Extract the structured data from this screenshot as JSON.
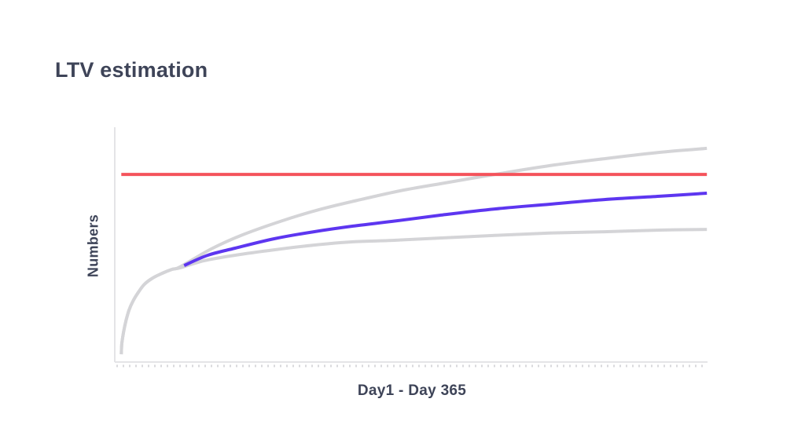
{
  "page": {
    "background_color": "#ffffff",
    "text_color": "#3e4458"
  },
  "chart_data": {
    "type": "line",
    "title": "LTV estimation",
    "xlabel": "Day1 - Day 365",
    "ylabel": "Numbers",
    "x_range": [
      0,
      100
    ],
    "y_range": [
      0,
      100
    ],
    "units_note": "axes have no numeric tick labels; point coordinates are percent of axis length (x: Day1..Day365, y: relative Numbers)",
    "grid": false,
    "legend": false,
    "axis_color": "#e4e4e7",
    "tick_color": "#d9d9dc",
    "line_width": 4,
    "series": [
      {
        "name": "upper-bound",
        "color": "#d4d4d7",
        "points": [
          [
            1.1,
            3.3
          ],
          [
            1.2,
            8.0
          ],
          [
            1.5,
            13.0
          ],
          [
            1.9,
            17.7
          ],
          [
            2.4,
            22.1
          ],
          [
            3.1,
            26.1
          ],
          [
            4.0,
            29.8
          ],
          [
            5.0,
            33.1
          ],
          [
            6.4,
            35.8
          ],
          [
            8.0,
            37.8
          ],
          [
            9.7,
            39.5
          ],
          [
            11.0,
            40.5
          ],
          [
            16.3,
            48.2
          ],
          [
            21.6,
            54.2
          ],
          [
            28.3,
            60.2
          ],
          [
            34.9,
            65.2
          ],
          [
            41.5,
            69.2
          ],
          [
            48.1,
            72.9
          ],
          [
            54.8,
            75.9
          ],
          [
            64.1,
            79.9
          ],
          [
            73.3,
            83.6
          ],
          [
            82.6,
            86.6
          ],
          [
            91.9,
            89.3
          ],
          [
            99.9,
            91.0
          ]
        ]
      },
      {
        "name": "lower-bound",
        "color": "#d4d4d7",
        "points": [
          [
            1.1,
            3.3
          ],
          [
            1.2,
            8.0
          ],
          [
            1.5,
            13.0
          ],
          [
            1.9,
            17.7
          ],
          [
            2.4,
            22.1
          ],
          [
            3.1,
            26.1
          ],
          [
            4.0,
            29.8
          ],
          [
            5.0,
            33.1
          ],
          [
            6.4,
            35.8
          ],
          [
            8.0,
            37.8
          ],
          [
            9.7,
            39.5
          ],
          [
            11.0,
            40.1
          ],
          [
            15.0,
            43.1
          ],
          [
            20.3,
            45.5
          ],
          [
            26.9,
            47.8
          ],
          [
            33.6,
            49.8
          ],
          [
            40.2,
            51.2
          ],
          [
            46.8,
            51.8
          ],
          [
            54.8,
            52.8
          ],
          [
            64.1,
            53.9
          ],
          [
            73.3,
            54.9
          ],
          [
            82.6,
            55.5
          ],
          [
            91.9,
            56.2
          ],
          [
            99.9,
            56.5
          ]
        ]
      },
      {
        "name": "ltv-ceiling",
        "color": "#f4535b",
        "points": [
          [
            1.1,
            79.9
          ],
          [
            99.9,
            79.9
          ]
        ]
      },
      {
        "name": "ltv-estimate",
        "color": "#5d36f0",
        "points": [
          [
            11.7,
            41.1
          ],
          [
            15.7,
            45.5
          ],
          [
            20.3,
            48.5
          ],
          [
            26.9,
            52.5
          ],
          [
            33.6,
            55.5
          ],
          [
            40.2,
            57.9
          ],
          [
            46.8,
            59.9
          ],
          [
            54.8,
            62.5
          ],
          [
            64.1,
            65.2
          ],
          [
            73.3,
            67.2
          ],
          [
            82.6,
            69.2
          ],
          [
            91.9,
            70.6
          ],
          [
            99.9,
            71.9
          ]
        ]
      }
    ]
  }
}
